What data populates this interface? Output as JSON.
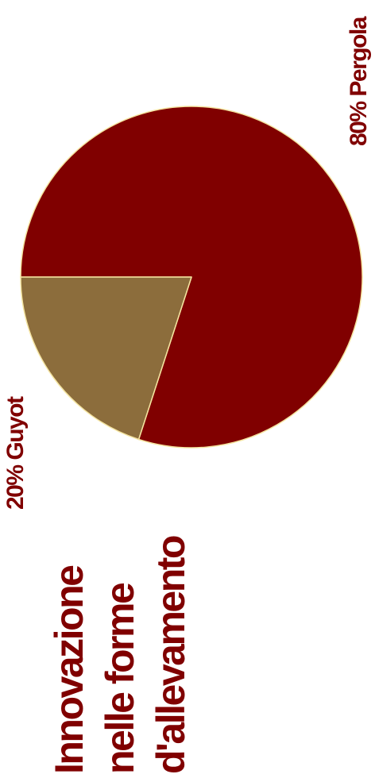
{
  "chart_data": {
    "type": "pie",
    "slices": [
      {
        "label": "80% Pergola",
        "value": 80,
        "color": "#800000"
      },
      {
        "label": "20% Guyot",
        "value": 20,
        "color": "#8c6d3c"
      }
    ],
    "edge_color": "#f4e4a0"
  },
  "title_lines": [
    "Innovazione",
    "nelle forme",
    "d'allevamento"
  ]
}
